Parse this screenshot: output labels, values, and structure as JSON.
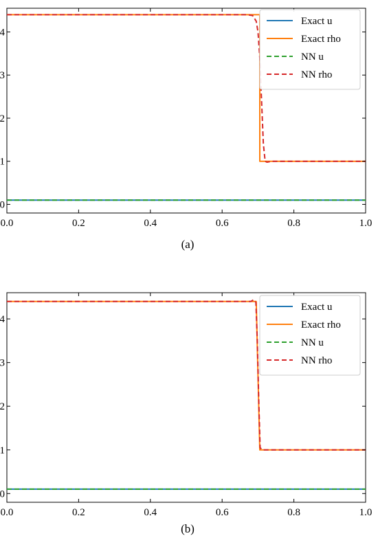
{
  "colors": {
    "exact_u": "#1f77b4",
    "exact_rho": "#ff7f0e",
    "nn_u": "#2ca02c",
    "nn_rho": "#d62728"
  },
  "chart_data": [
    {
      "type": "line",
      "caption": "(a)",
      "xlim": [
        0.0,
        1.0
      ],
      "ylim": [
        -0.2,
        4.55
      ],
      "xticks": [
        "0.0",
        "0.2",
        "0.4",
        "0.6",
        "0.8",
        "1.0"
      ],
      "yticks": [
        "0",
        "1",
        "2",
        "3",
        "4"
      ],
      "legend_position": "top-right",
      "series": [
        {
          "name": "Exact u",
          "style": "solid",
          "color": "#1f77b4",
          "x": [
            0.0,
            1.0
          ],
          "y": [
            0.1,
            0.1
          ]
        },
        {
          "name": "Exact rho",
          "style": "solid",
          "color": "#ff7f0e",
          "x": [
            0.0,
            0.705,
            0.705,
            1.0
          ],
          "y": [
            4.4,
            4.4,
            1.0,
            1.0
          ]
        },
        {
          "name": "NN u",
          "style": "dashed",
          "color": "#2ca02c",
          "x": [
            0.0,
            1.0
          ],
          "y": [
            0.1,
            0.1
          ]
        },
        {
          "name": "NN rho",
          "style": "dashed",
          "color": "#d62728",
          "x": [
            0.0,
            0.67,
            0.685,
            0.695,
            0.7,
            0.705,
            0.71,
            0.715,
            0.72,
            0.725,
            0.74,
            1.0
          ],
          "y": [
            4.4,
            4.4,
            4.38,
            4.25,
            4.0,
            3.4,
            2.4,
            1.4,
            1.0,
            0.98,
            1.0,
            1.0
          ]
        }
      ]
    },
    {
      "type": "line",
      "caption": "(b)",
      "xlim": [
        0.0,
        1.0
      ],
      "ylim": [
        -0.2,
        4.6
      ],
      "xticks": [
        "0.0",
        "0.2",
        "0.4",
        "0.6",
        "0.8",
        "1.0"
      ],
      "yticks": [
        "0",
        "1",
        "2",
        "3",
        "4"
      ],
      "legend_position": "top-right",
      "series": [
        {
          "name": "Exact u",
          "style": "solid",
          "color": "#1f77b4",
          "x": [
            0.0,
            1.0
          ],
          "y": [
            0.1,
            0.1
          ]
        },
        {
          "name": "Exact rho",
          "style": "solid",
          "color": "#ff7f0e",
          "x": [
            0.0,
            0.695,
            0.705,
            1.0
          ],
          "y": [
            4.4,
            4.4,
            1.0,
            1.0
          ]
        },
        {
          "name": "NN u",
          "style": "dashed",
          "color": "#2ca02c",
          "x": [
            0.0,
            1.0
          ],
          "y": [
            0.1,
            0.1
          ]
        },
        {
          "name": "NN rho",
          "style": "dashed",
          "color": "#d62728",
          "x": [
            0.0,
            0.68,
            0.688,
            0.694,
            0.698,
            0.702,
            0.706,
            0.712,
            1.0
          ],
          "y": [
            4.4,
            4.4,
            4.44,
            4.38,
            3.5,
            2.2,
            1.05,
            1.0,
            1.0
          ]
        }
      ]
    }
  ]
}
